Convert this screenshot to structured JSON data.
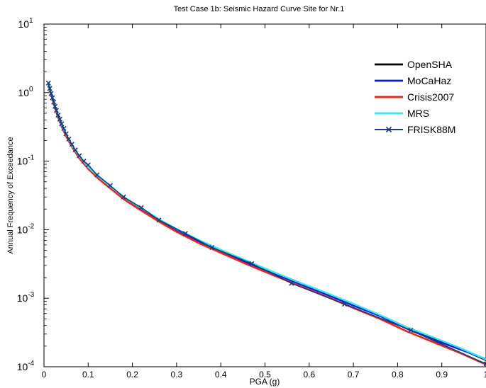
{
  "chart_data": {
    "type": "line",
    "title": "Test Case 1b: Seismic Hazard Curve Site for Nr.1",
    "xlabel": "PGA (g)",
    "ylabel": "Annual Frequency of Exceedance",
    "xlim": [
      0,
      1
    ],
    "ylim": [
      0.0001,
      10
    ],
    "yscale": "log",
    "grid": false,
    "legend_position": "top-right",
    "x_ticks": [
      0,
      0.1,
      0.2,
      0.3,
      0.4,
      0.5,
      0.6,
      0.7,
      0.8,
      0.9,
      1
    ],
    "x_tick_labels": [
      "0",
      "0.1",
      "0.2",
      "0.3",
      "0.4",
      "0.5",
      "0.6",
      "0.7",
      "0.8",
      "0.9",
      "1"
    ],
    "y_ticks": [
      {
        "value": 0.0001,
        "base": "10",
        "exp": "-4"
      },
      {
        "value": 0.001,
        "base": "10",
        "exp": "-3"
      },
      {
        "value": 0.01,
        "base": "10",
        "exp": "-2"
      },
      {
        "value": 0.1,
        "base": "10",
        "exp": "-1"
      },
      {
        "value": 1,
        "base": "10",
        "exp": "0"
      },
      {
        "value": 10,
        "base": "10",
        "exp": "1"
      }
    ],
    "series": [
      {
        "name": "OpenSHA",
        "color": "#000000",
        "width": 2.4,
        "marker": "none",
        "x": [
          0.01,
          0.015,
          0.02,
          0.025,
          0.03,
          0.04,
          0.05,
          0.065,
          0.08,
          0.1,
          0.125,
          0.15,
          0.18,
          0.22,
          0.26,
          0.3,
          0.35,
          0.4,
          0.46,
          0.52,
          0.58,
          0.64,
          0.7,
          0.76,
          0.82,
          0.88,
          0.94,
          1.0
        ],
        "y": [
          1.38,
          1.05,
          0.8,
          0.62,
          0.49,
          0.33,
          0.24,
          0.16,
          0.115,
          0.08,
          0.056,
          0.042,
          0.029,
          0.02,
          0.0138,
          0.0098,
          0.0068,
          0.0049,
          0.0033,
          0.0023,
          0.0016,
          0.00113,
          0.00078,
          0.00055,
          0.00037,
          0.00026,
          0.000185,
          0.000125
        ]
      },
      {
        "name": "MoCaHaz",
        "color": "#0a1ed8",
        "width": 2.4,
        "marker": "none",
        "x": [
          0.01,
          0.015,
          0.02,
          0.025,
          0.03,
          0.04,
          0.05,
          0.065,
          0.08,
          0.1,
          0.125,
          0.15,
          0.18,
          0.22,
          0.26,
          0.3,
          0.35,
          0.4,
          0.46,
          0.52,
          0.58,
          0.64,
          0.7,
          0.76,
          0.82,
          0.88,
          0.94,
          1.0
        ],
        "y": [
          1.38,
          1.05,
          0.8,
          0.62,
          0.49,
          0.33,
          0.24,
          0.16,
          0.115,
          0.08,
          0.056,
          0.042,
          0.029,
          0.02,
          0.0138,
          0.0098,
          0.0068,
          0.0049,
          0.0033,
          0.0023,
          0.0016,
          0.00113,
          0.00078,
          0.00055,
          0.00036,
          0.00025,
          0.00018,
          0.00013
        ]
      },
      {
        "name": "Crisis2007",
        "color": "#e8281e",
        "width": 2.6,
        "marker": "none",
        "x": [
          0.01,
          0.015,
          0.02,
          0.025,
          0.03,
          0.04,
          0.05,
          0.065,
          0.08,
          0.1,
          0.125,
          0.15,
          0.18,
          0.22,
          0.26,
          0.3,
          0.35,
          0.4,
          0.46,
          0.52,
          0.58,
          0.64,
          0.7,
          0.76,
          0.82,
          0.88,
          0.94,
          1.0
        ],
        "y": [
          1.35,
          1.02,
          0.78,
          0.6,
          0.47,
          0.32,
          0.23,
          0.155,
          0.11,
          0.077,
          0.054,
          0.04,
          0.028,
          0.019,
          0.0131,
          0.0093,
          0.0064,
          0.0046,
          0.0031,
          0.00215,
          0.0015,
          0.00105,
          0.00072,
          0.0005,
          0.00033,
          0.00023,
          0.00016,
          0.000108
        ]
      },
      {
        "name": "MRS",
        "color": "#33e8f2",
        "width": 2.4,
        "marker": "none",
        "x": [
          0.01,
          0.015,
          0.02,
          0.025,
          0.03,
          0.04,
          0.05,
          0.065,
          0.08,
          0.1,
          0.125,
          0.15,
          0.18,
          0.22,
          0.26,
          0.3,
          0.35,
          0.4,
          0.46,
          0.52,
          0.58,
          0.64,
          0.7,
          0.76,
          0.82,
          0.88,
          0.94,
          1.0
        ],
        "y": [
          1.4,
          1.07,
          0.82,
          0.63,
          0.5,
          0.34,
          0.245,
          0.163,
          0.118,
          0.082,
          0.058,
          0.043,
          0.03,
          0.0206,
          0.0143,
          0.0102,
          0.0071,
          0.0051,
          0.0035,
          0.0024,
          0.00168,
          0.00119,
          0.00083,
          0.00057,
          0.00038,
          0.00027,
          0.00019,
          0.000128
        ]
      },
      {
        "name": "FRISK88M",
        "color": "#1b3a7a",
        "width": 1.6,
        "marker": "x",
        "x": [
          0.01,
          0.013,
          0.016,
          0.019,
          0.022,
          0.025,
          0.028,
          0.032,
          0.036,
          0.04,
          0.045,
          0.05,
          0.056,
          0.063,
          0.071,
          0.08,
          0.09,
          0.1,
          0.12,
          0.15,
          0.18,
          0.22,
          0.26,
          0.32,
          0.38,
          0.47,
          0.56,
          0.68,
          0.83,
          1.0
        ],
        "y": [
          1.38,
          1.15,
          0.97,
          0.84,
          0.73,
          0.63,
          0.55,
          0.47,
          0.41,
          0.35,
          0.3,
          0.25,
          0.21,
          0.176,
          0.146,
          0.12,
          0.1,
          0.088,
          0.063,
          0.044,
          0.03,
          0.021,
          0.0138,
          0.0088,
          0.0055,
          0.0032,
          0.00165,
          0.00082,
          0.00034,
          0.00011
        ]
      }
    ]
  }
}
